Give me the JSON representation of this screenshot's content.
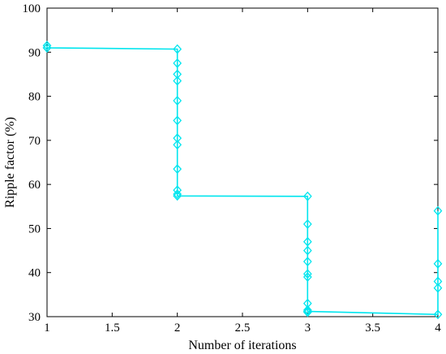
{
  "chart_data": {
    "type": "line",
    "title": "",
    "xlabel": "Number of iterations",
    "ylabel": "Ripple factor (%)",
    "xlim": [
      1,
      4
    ],
    "ylim": [
      30,
      100
    ],
    "x_ticks": [
      "1",
      "1.5",
      "2",
      "2.5",
      "3",
      "3.5",
      "4"
    ],
    "y_ticks": [
      "30",
      "40",
      "50",
      "60",
      "70",
      "80",
      "90",
      "100"
    ],
    "grid": false,
    "legend": "none",
    "series": [
      {
        "color": "#00e5ee",
        "marker": "diamond",
        "x": [
          1,
          1,
          1,
          2,
          2,
          2,
          2,
          2,
          2,
          2,
          2,
          2,
          2,
          2,
          2,
          3,
          3,
          3,
          3,
          3,
          3,
          3,
          3,
          3,
          3,
          3,
          3,
          4,
          4,
          4,
          4,
          4
        ],
        "y": [
          91.5,
          91.0,
          91.0,
          90.7,
          87.5,
          85.0,
          83.5,
          79.0,
          74.5,
          70.5,
          69.0,
          63.5,
          58.7,
          57.8,
          57.4,
          57.3,
          51.0,
          47.0,
          45.0,
          42.5,
          39.7,
          39.0,
          33.0,
          31.5,
          31.2,
          31.0,
          31.2,
          30.5,
          36.5,
          38.0,
          42.0,
          54.0
        ]
      }
    ]
  }
}
